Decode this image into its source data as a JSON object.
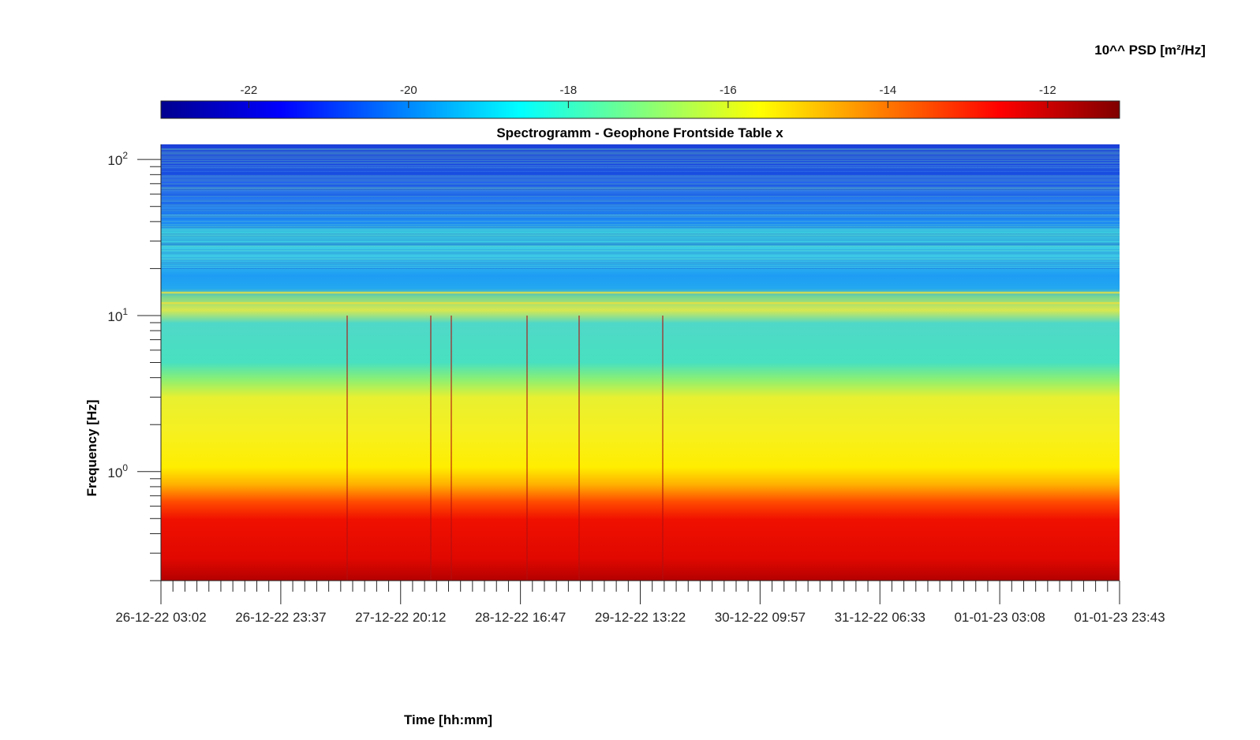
{
  "chart_data": {
    "type": "heatmap",
    "title": "Spectrogramm - Geophone Frontside Table x",
    "xlabel": "Time [hh:mm]",
    "ylabel": "Frequency [Hz]",
    "x_ticks": [
      "26-12-22 03:02",
      "26-12-22 23:37",
      "27-12-22 20:12",
      "28-12-22 16:47",
      "29-12-22 13:22",
      "30-12-22 09:57",
      "31-12-22 06:33",
      "01-01-23 03:08",
      "01-01-23 23:43"
    ],
    "y_scale": "log",
    "y_ticks": [
      {
        "base": "10",
        "exp": "2",
        "value": 100
      },
      {
        "base": "10",
        "exp": "1",
        "value": 10
      },
      {
        "base": "10",
        "exp": "0",
        "value": 1
      }
    ],
    "ylim": [
      0.2,
      125
    ],
    "colorbar": {
      "label": "10^^ PSD [m²/Hz]",
      "ticks": [
        "-22",
        "-20",
        "-18",
        "-16",
        "-14",
        "-12"
      ],
      "tick_values": [
        -22,
        -20,
        -18,
        -16,
        -14,
        -12
      ],
      "range": [
        -23.1,
        -11.1
      ],
      "colormap": "jet"
    },
    "bands": [
      {
        "f_low": 20,
        "f_high": 125,
        "log10_psd": -20.5
      },
      {
        "f_low": 10,
        "f_high": 20,
        "log10_psd": -18.5
      },
      {
        "f_low": 3,
        "f_high": 10,
        "log10_psd": -17.8
      },
      {
        "f_low": 0.8,
        "f_high": 3,
        "log10_psd": -15.8
      },
      {
        "f_low": 0.2,
        "f_high": 0.8,
        "log10_psd": -12.3
      }
    ]
  }
}
